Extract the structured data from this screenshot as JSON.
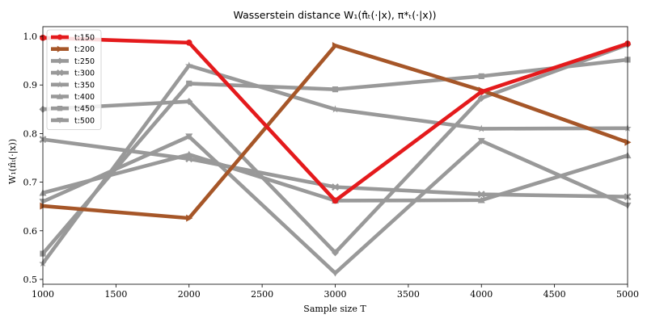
{
  "chart_data": {
    "type": "line",
    "title": "Wasserstein distance W₁(π̂ₜ(·|x), π*ₜ(·|x))",
    "xlabel": "Sample size T",
    "ylabel": "W₁(π̂ₜ(·|x))",
    "x": [
      1000,
      2000,
      3000,
      4000,
      5000
    ],
    "xlim": [
      1000,
      5000
    ],
    "ylim": [
      0.49,
      1.02
    ],
    "xticks": [
      "1000",
      "1500",
      "2000",
      "2500",
      "3000",
      "3500",
      "4000",
      "4500",
      "5000"
    ],
    "yticks": [
      "0.5",
      "0.6",
      "0.7",
      "0.8",
      "0.9",
      "1.0"
    ],
    "grid": false,
    "legend_position": "top-left",
    "series": [
      {
        "name": "t:150",
        "color": "#e41a1c",
        "marker": "circle",
        "values": [
          0.997,
          0.987,
          0.662,
          0.886,
          0.985
        ]
      },
      {
        "name": "t:200",
        "color": "#a65628",
        "marker": "triangle-right",
        "values": [
          0.651,
          0.626,
          0.981,
          0.889,
          0.782
        ]
      },
      {
        "name": "t:250",
        "color": "#999999",
        "marker": "diamond",
        "values": [
          0.85,
          0.866,
          0.555,
          0.873,
          0.983
        ]
      },
      {
        "name": "t:300",
        "color": "#999999",
        "marker": "x",
        "values": [
          0.788,
          0.748,
          0.69,
          0.675,
          0.67
        ]
      },
      {
        "name": "t:350",
        "color": "#999999",
        "marker": "star",
        "values": [
          0.533,
          0.94,
          0.85,
          0.81,
          0.811
        ]
      },
      {
        "name": "t:400",
        "color": "#999999",
        "marker": "triangle-up",
        "values": [
          0.678,
          0.757,
          0.662,
          0.663,
          0.755
        ]
      },
      {
        "name": "t:450",
        "color": "#999999",
        "marker": "square",
        "values": [
          0.553,
          0.903,
          0.891,
          0.918,
          0.952
        ]
      },
      {
        "name": "t:500",
        "color": "#999999",
        "marker": "triangle-down",
        "values": [
          0.66,
          0.794,
          0.513,
          0.785,
          0.652
        ]
      }
    ]
  }
}
